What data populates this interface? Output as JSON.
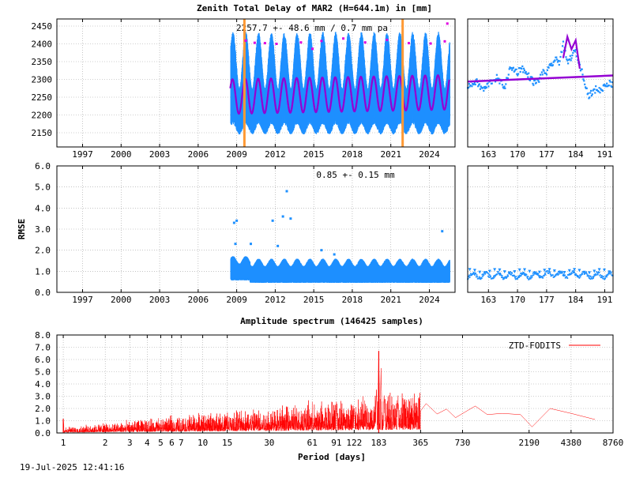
{
  "colors": {
    "observation": "#1e90ff",
    "model": "#9400d3",
    "break_marker": "#ff9933",
    "outlier": "#e000e0",
    "spectrum": "#ff0000",
    "axis": "#000000",
    "grid": "#a0a0a0"
  },
  "footer": {
    "timestamp": "19-Jul-2025 12:41:16"
  },
  "chart_data": [
    {
      "id": "ztd-full",
      "type": "scatter",
      "title": "Zenith Total Delay of MAR2 (H=644.1m) in [mm]",
      "annotation": "2257.7 +-  48.6 mm /  0.7 mm pa",
      "xlim": [
        1995.0,
        2026.0
      ],
      "ylim": [
        2110,
        2470
      ],
      "xticks": [
        "1997",
        "2000",
        "2003",
        "2006",
        "2009",
        "2012",
        "2015",
        "2018",
        "2021",
        "2024"
      ],
      "yticks": [
        "2150",
        "2200",
        "2250",
        "2300",
        "2350",
        "2400",
        "2450"
      ],
      "grid": true,
      "data_start": 2008.5,
      "data_end": 2025.55,
      "break_markers_x": [
        2009.6,
        2021.92
      ],
      "mean_mm": 2257.7,
      "seasonal_amplitude_mm": 48.6,
      "trend_mm_per_year": 0.7,
      "observation_series": {
        "center": 2262,
        "seasonal_amplitude": 48.6,
        "max_spread": 130,
        "min_spread": 65
      },
      "outliers": [
        {
          "x": 2009.7,
          "y": 2409
        },
        {
          "x": 2010.4,
          "y": 2403
        },
        {
          "x": 2011.2,
          "y": 2402
        },
        {
          "x": 2012.1,
          "y": 2400
        },
        {
          "x": 2014.0,
          "y": 2404
        },
        {
          "x": 2015.6,
          "y": 2408
        },
        {
          "x": 2017.3,
          "y": 2415
        },
        {
          "x": 2019.0,
          "y": 2404
        },
        {
          "x": 2020.7,
          "y": 2411
        },
        {
          "x": 2022.4,
          "y": 2402
        },
        {
          "x": 2024.1,
          "y": 2401
        },
        {
          "x": 2025.2,
          "y": 2407
        },
        {
          "x": 2025.4,
          "y": 2457
        },
        {
          "x": 2014.9,
          "y": 2386
        }
      ]
    },
    {
      "id": "ztd-zoom",
      "type": "scatter",
      "xlim": [
        158,
        193
      ],
      "ylim": [
        2110,
        2470
      ],
      "xticks": [
        "163",
        "170",
        "177",
        "184",
        "191"
      ],
      "grid": true,
      "observations": [
        [
          158,
          2283
        ],
        [
          159,
          2285
        ],
        [
          160,
          2295
        ],
        [
          161,
          2278
        ],
        [
          162,
          2272
        ],
        [
          163,
          2287
        ],
        [
          164,
          2298
        ],
        [
          165,
          2304
        ],
        [
          166,
          2290
        ],
        [
          167,
          2280
        ],
        [
          168,
          2327
        ],
        [
          169,
          2330
        ],
        [
          170,
          2320
        ],
        [
          171,
          2335
        ],
        [
          172,
          2317
        ],
        [
          173,
          2306
        ],
        [
          174,
          2290
        ],
        [
          175,
          2296
        ],
        [
          176,
          2318
        ],
        [
          177,
          2320
        ],
        [
          178,
          2338
        ],
        [
          179,
          2355
        ],
        [
          180,
          2350
        ],
        [
          181,
          2398
        ],
        [
          182,
          2346
        ],
        [
          183,
          2366
        ],
        [
          184,
          2380
        ],
        [
          185,
          2340
        ],
        [
          186,
          2303
        ],
        [
          187,
          2255
        ],
        [
          188,
          2262
        ],
        [
          189,
          2275
        ],
        [
          190,
          2268
        ],
        [
          191,
          2285
        ],
        [
          192,
          2290
        ],
        [
          193,
          2285
        ]
      ],
      "model_line": [
        [
          158,
          2294
        ],
        [
          193,
          2311
        ]
      ],
      "model_highlight": [
        [
          181,
          2360
        ],
        [
          182,
          2420
        ],
        [
          183,
          2385
        ],
        [
          184,
          2410
        ],
        [
          185,
          2330
        ]
      ]
    },
    {
      "id": "rmse-full",
      "type": "scatter",
      "ylabel": "RMSE",
      "annotation": "0.85 +-  0.15 mm",
      "xlim": [
        1995.0,
        2026.0
      ],
      "ylim": [
        0.0,
        6.0
      ],
      "xticks": [
        "1997",
        "2000",
        "2003",
        "2006",
        "2009",
        "2012",
        "2015",
        "2018",
        "2021",
        "2024"
      ],
      "yticks": [
        "0.0",
        "1.0",
        "2.0",
        "3.0",
        "4.0",
        "5.0",
        "6.0"
      ],
      "grid": true,
      "data_start": 2008.5,
      "data_end": 2025.55,
      "mean": 0.85,
      "std": 0.15,
      "outliers": [
        {
          "x": 2008.8,
          "y": 3.3
        },
        {
          "x": 2009.0,
          "y": 3.4
        },
        {
          "x": 2008.9,
          "y": 2.3
        },
        {
          "x": 2010.1,
          "y": 2.3
        },
        {
          "x": 2011.8,
          "y": 3.4
        },
        {
          "x": 2012.2,
          "y": 2.2
        },
        {
          "x": 2012.6,
          "y": 3.6
        },
        {
          "x": 2012.9,
          "y": 4.8
        },
        {
          "x": 2013.2,
          "y": 3.5
        },
        {
          "x": 2015.6,
          "y": 2.0
        },
        {
          "x": 2025.0,
          "y": 2.9
        },
        {
          "x": 2016.6,
          "y": 1.8
        }
      ]
    },
    {
      "id": "rmse-zoom",
      "type": "scatter",
      "xlim": [
        158,
        193
      ],
      "ylim": [
        0.0,
        6.0
      ],
      "xticks": [
        "163",
        "170",
        "177",
        "184",
        "191"
      ],
      "grid": true,
      "mean": 0.8
    },
    {
      "id": "spectrum",
      "type": "line",
      "title": "Amplitude spectrum (146425 samples)",
      "xlabel": "Period [days]",
      "xscale": "log",
      "xlim": [
        0.9,
        8760
      ],
      "ylim": [
        0.0,
        8.0
      ],
      "xtick_values": [
        1,
        2,
        3,
        4,
        5,
        6,
        7,
        10,
        15,
        30,
        61,
        91,
        122,
        183,
        365,
        730,
        2190,
        4380,
        8760
      ],
      "xtick_labels": [
        "1",
        "2",
        "3",
        "4",
        "5",
        "6",
        "7",
        "10",
        "15",
        "30",
        "61",
        "91",
        "122",
        "183",
        "365",
        "730",
        "2190",
        "4380",
        "8760"
      ],
      "yticks": [
        "0.0",
        "1.0",
        "2.0",
        "3.0",
        "4.0",
        "5.0",
        "6.0",
        "7.0",
        "8.0"
      ],
      "grid": true,
      "legend": "top-right",
      "series": [
        {
          "name": "ZTD-FODITS",
          "peaks": [
            [
              1.0,
              1.15
            ],
            [
              183,
              6.7
            ],
            [
              190,
              5.3
            ],
            [
              176,
              3.7
            ],
            [
              91,
              2.55
            ],
            [
              122,
              2.05
            ],
            [
              250,
              2.55
            ],
            [
              200,
              3.2
            ]
          ],
          "low_period_tail": [
            [
              365,
              1.8
            ],
            [
              400,
              2.4
            ],
            [
              480,
              1.55
            ],
            [
              560,
              1.95
            ],
            [
              650,
              1.25
            ],
            [
              900,
              2.2
            ],
            [
              1100,
              1.5
            ],
            [
              1400,
              1.6
            ],
            [
              1900,
              1.5
            ],
            [
              2300,
              0.5
            ],
            [
              3100,
              2.0
            ],
            [
              4380,
              1.6
            ],
            [
              6500,
              1.1
            ]
          ]
        }
      ]
    }
  ]
}
